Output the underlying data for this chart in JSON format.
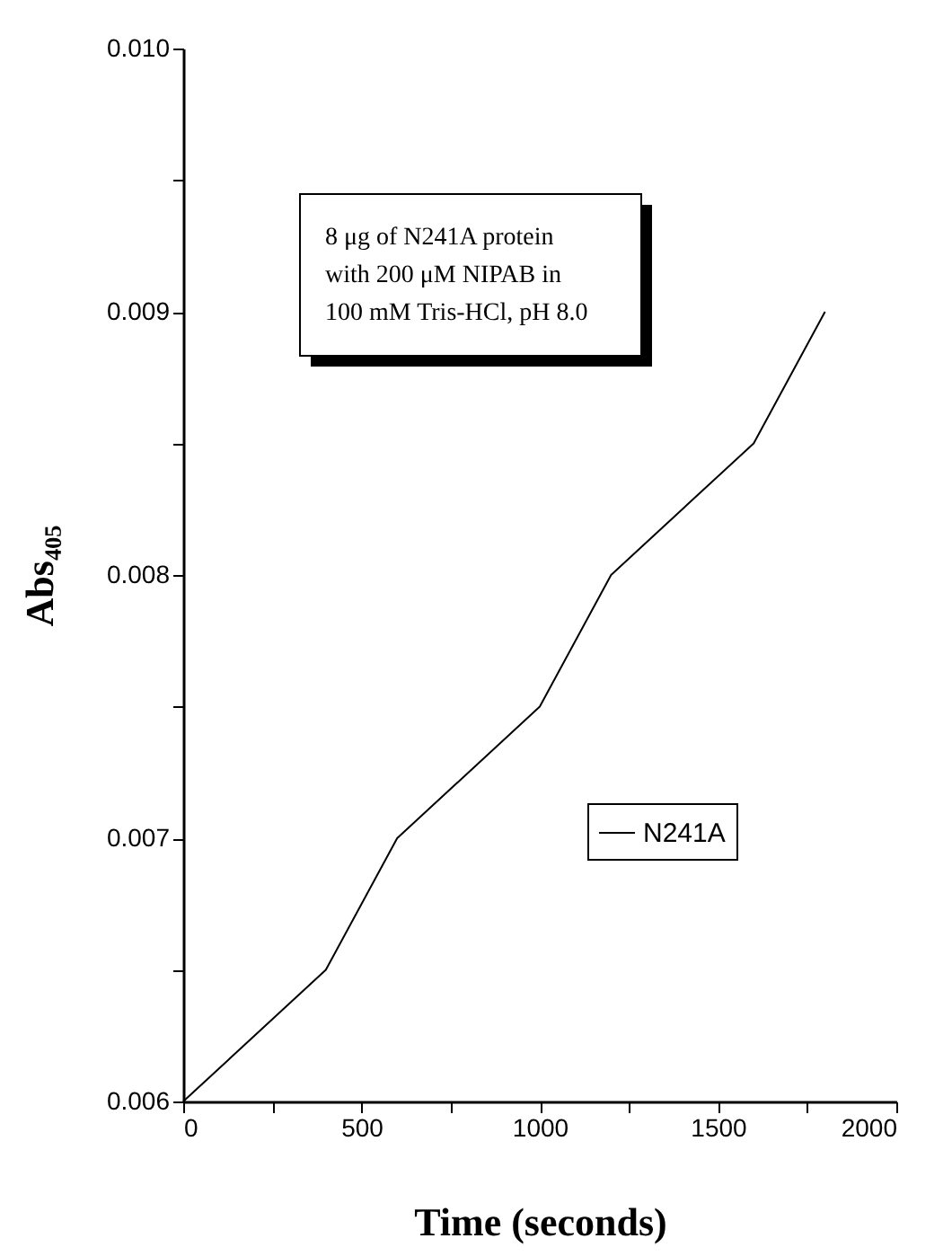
{
  "chart_data": {
    "type": "line",
    "xlabel": "Time (seconds)",
    "ylabel": "Abs₄₀₅",
    "x": [
      0,
      400,
      600,
      1000,
      1200,
      1600,
      1800
    ],
    "series": [
      {
        "name": "N241A",
        "color": "#000000",
        "values": [
          0.006,
          0.0065,
          0.007,
          0.0075,
          0.008,
          0.0085,
          0.009
        ]
      }
    ],
    "xlim": [
      0,
      2000
    ],
    "xticks": [
      0,
      {
        "value": 250,
        "label": null
      },
      500,
      {
        "value": 750,
        "label": null
      },
      1000,
      {
        "value": 1250,
        "label": null
      },
      1500,
      {
        "value": 1750,
        "label": null
      },
      2000
    ],
    "ylim": [
      0.006,
      0.01
    ],
    "yticks": [
      {
        "value": 0.006,
        "label": "0.006"
      },
      {
        "value": 0.0065,
        "label": null
      },
      {
        "value": 0.007,
        "label": "0.007"
      },
      {
        "value": 0.0075,
        "label": null
      },
      {
        "value": 0.008,
        "label": "0.008"
      },
      {
        "value": 0.0085,
        "label": null
      },
      {
        "value": 0.009,
        "label": "0.009"
      },
      {
        "value": 0.0095,
        "label": null
      },
      {
        "value": 0.01,
        "label": "0.010"
      }
    ],
    "annotations": [
      "8 μg of N241A protein\nwith 200 μM NIPAB in\n100 mM Tris-HCl, pH 8.0"
    ],
    "legend": "right",
    "grid": false,
    "marker": "none",
    "line_style": "solid"
  }
}
